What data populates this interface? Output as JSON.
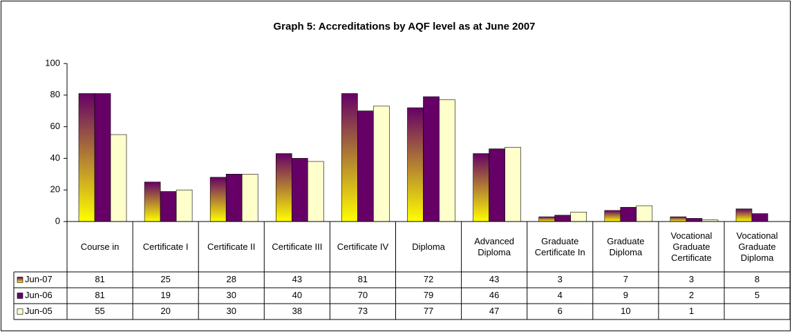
{
  "chart_data": {
    "type": "bar",
    "title": "Graph 5: Accreditations by AQF level as at June 2007",
    "categories": [
      "Course in",
      "Certificate I",
      "Certificate II",
      "Certificate III",
      "Certificate IV",
      "Diploma",
      "Advanced Diploma",
      "Graduate Certificate In",
      "Graduate Diploma",
      "Vocational Graduate Certificate",
      "Vocational Graduate Diploma"
    ],
    "series": [
      {
        "name": "Jun-07",
        "color": "#ffff00",
        "gradient": "#660066",
        "values": [
          81,
          25,
          28,
          43,
          81,
          72,
          43,
          3,
          7,
          3,
          8
        ]
      },
      {
        "name": "Jun-06",
        "color": "#660066",
        "values": [
          81,
          19,
          30,
          40,
          70,
          79,
          46,
          4,
          9,
          2,
          5
        ]
      },
      {
        "name": "Jun-05",
        "color": "#ffffcc",
        "values": [
          55,
          20,
          30,
          38,
          73,
          77,
          47,
          6,
          10,
          1,
          null
        ]
      }
    ],
    "ylim": [
      0,
      100
    ],
    "yticks": [
      0,
      20,
      40,
      60,
      80,
      100
    ],
    "grid": false,
    "data_table": true
  }
}
